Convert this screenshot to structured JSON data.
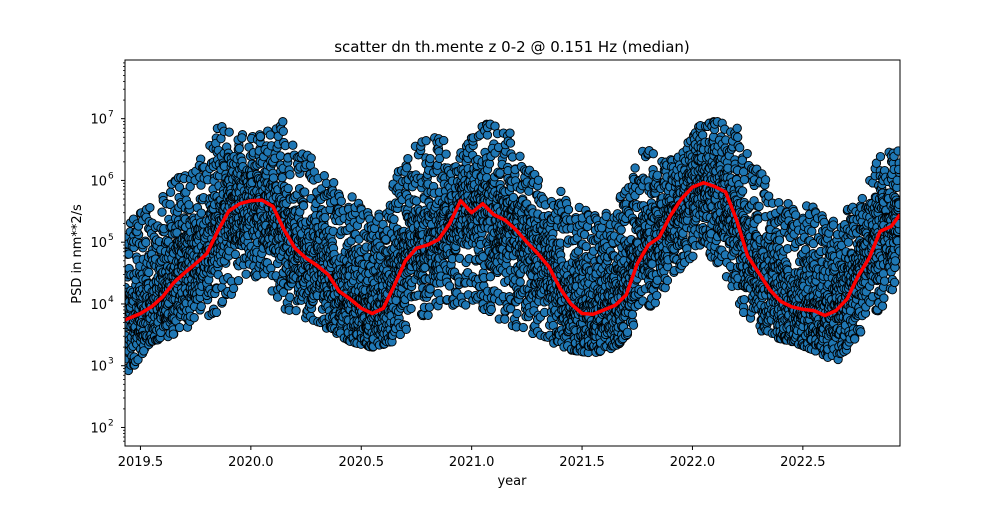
{
  "chart_data": {
    "type": "scatter",
    "title": "scatter dn th.mente z 0-2 @ 0.151 Hz (median)",
    "xlabel": "year",
    "ylabel": "PSD in nm**2/s",
    "xlim": [
      2019.43,
      2022.94
    ],
    "ylim_log10": [
      1.7,
      7.95
    ],
    "yscale": "log",
    "x_ticks": [
      2019.5,
      2020.0,
      2020.5,
      2021.0,
      2021.5,
      2022.0,
      2022.5
    ],
    "x_tick_labels": [
      "2019.5",
      "2020.0",
      "2020.5",
      "2021.0",
      "2021.5",
      "2022.0",
      "2022.5"
    ],
    "y_ticks_log10": [
      2,
      3,
      4,
      5,
      6,
      7
    ],
    "y_tick_labels": [
      "10",
      "10",
      "10",
      "10",
      "10",
      "10"
    ],
    "y_tick_exponents": [
      "2",
      "3",
      "4",
      "5",
      "6",
      "7"
    ],
    "grid": false,
    "scatter_color": "#1f77b4",
    "median_color": "#ff0000",
    "median_series": {
      "x": [
        2019.43,
        2019.5,
        2019.55,
        2019.6,
        2019.65,
        2019.7,
        2019.75,
        2019.8,
        2019.85,
        2019.9,
        2019.95,
        2020.0,
        2020.05,
        2020.1,
        2020.15,
        2020.2,
        2020.25,
        2020.3,
        2020.35,
        2020.4,
        2020.45,
        2020.5,
        2020.55,
        2020.6,
        2020.65,
        2020.7,
        2020.75,
        2020.8,
        2020.85,
        2020.9,
        2020.95,
        2021.0,
        2021.05,
        2021.1,
        2021.15,
        2021.2,
        2021.25,
        2021.3,
        2021.35,
        2021.4,
        2021.45,
        2021.5,
        2021.55,
        2021.6,
        2021.65,
        2021.7,
        2021.75,
        2021.8,
        2021.85,
        2021.9,
        2021.95,
        2022.0,
        2022.05,
        2022.1,
        2022.15,
        2022.2,
        2022.25,
        2022.3,
        2022.35,
        2022.4,
        2022.45,
        2022.5,
        2022.55,
        2022.6,
        2022.65,
        2022.7,
        2022.75,
        2022.8,
        2022.85,
        2022.9,
        2022.94
      ],
      "y": [
        5500,
        7000,
        9000,
        13000,
        22000,
        32000,
        45000,
        65000,
        150000,
        320000,
        420000,
        470000,
        480000,
        380000,
        160000,
        80000,
        55000,
        42000,
        30000,
        16000,
        12000,
        8500,
        7000,
        8500,
        20000,
        50000,
        80000,
        90000,
        110000,
        200000,
        470000,
        300000,
        420000,
        280000,
        230000,
        160000,
        100000,
        65000,
        40000,
        18000,
        10000,
        7000,
        6800,
        8000,
        9500,
        14000,
        45000,
        90000,
        120000,
        270000,
        500000,
        780000,
        920000,
        800000,
        650000,
        230000,
        60000,
        32000,
        17000,
        11000,
        9000,
        8200,
        7800,
        6500,
        7800,
        12000,
        28000,
        55000,
        150000,
        180000,
        280000
      ]
    },
    "scatter_summary": {
      "x": [
        2019.45,
        2019.55,
        2019.65,
        2019.75,
        2019.85,
        2019.95,
        2020.05,
        2020.15,
        2020.25,
        2020.35,
        2020.45,
        2020.55,
        2020.65,
        2020.75,
        2020.85,
        2020.95,
        2021.05,
        2021.15,
        2021.25,
        2021.35,
        2021.45,
        2021.55,
        2021.65,
        2021.75,
        2021.85,
        2021.95,
        2022.05,
        2022.15,
        2022.25,
        2022.35,
        2022.45,
        2022.55,
        2022.65,
        2022.75,
        2022.85,
        2022.93
      ],
      "y_low": [
        800,
        2500,
        3000,
        5000,
        7000,
        20000,
        30000,
        8000,
        5000,
        4000,
        2500,
        2000,
        2500,
        5000,
        8000,
        10000,
        8000,
        5000,
        3000,
        2500,
        1800,
        1600,
        2000,
        5000,
        12000,
        40000,
        80000,
        30000,
        5000,
        3000,
        2500,
        1800,
        1200,
        3000,
        8000,
        20000
      ],
      "y_high": [
        200000,
        900000,
        1200000,
        2000000,
        11500000,
        5500000,
        6000000,
        11000000,
        5000000,
        1500000,
        1000000,
        900000,
        1500000,
        4000000,
        6500000,
        3000000,
        9000000,
        8000000,
        2000000,
        600000,
        900000,
        1000000,
        600000,
        5500000,
        2000000,
        3000000,
        10000000,
        9000000,
        5500000,
        1000000,
        600000,
        400000,
        300000,
        400000,
        2500000,
        3500000
      ]
    }
  }
}
